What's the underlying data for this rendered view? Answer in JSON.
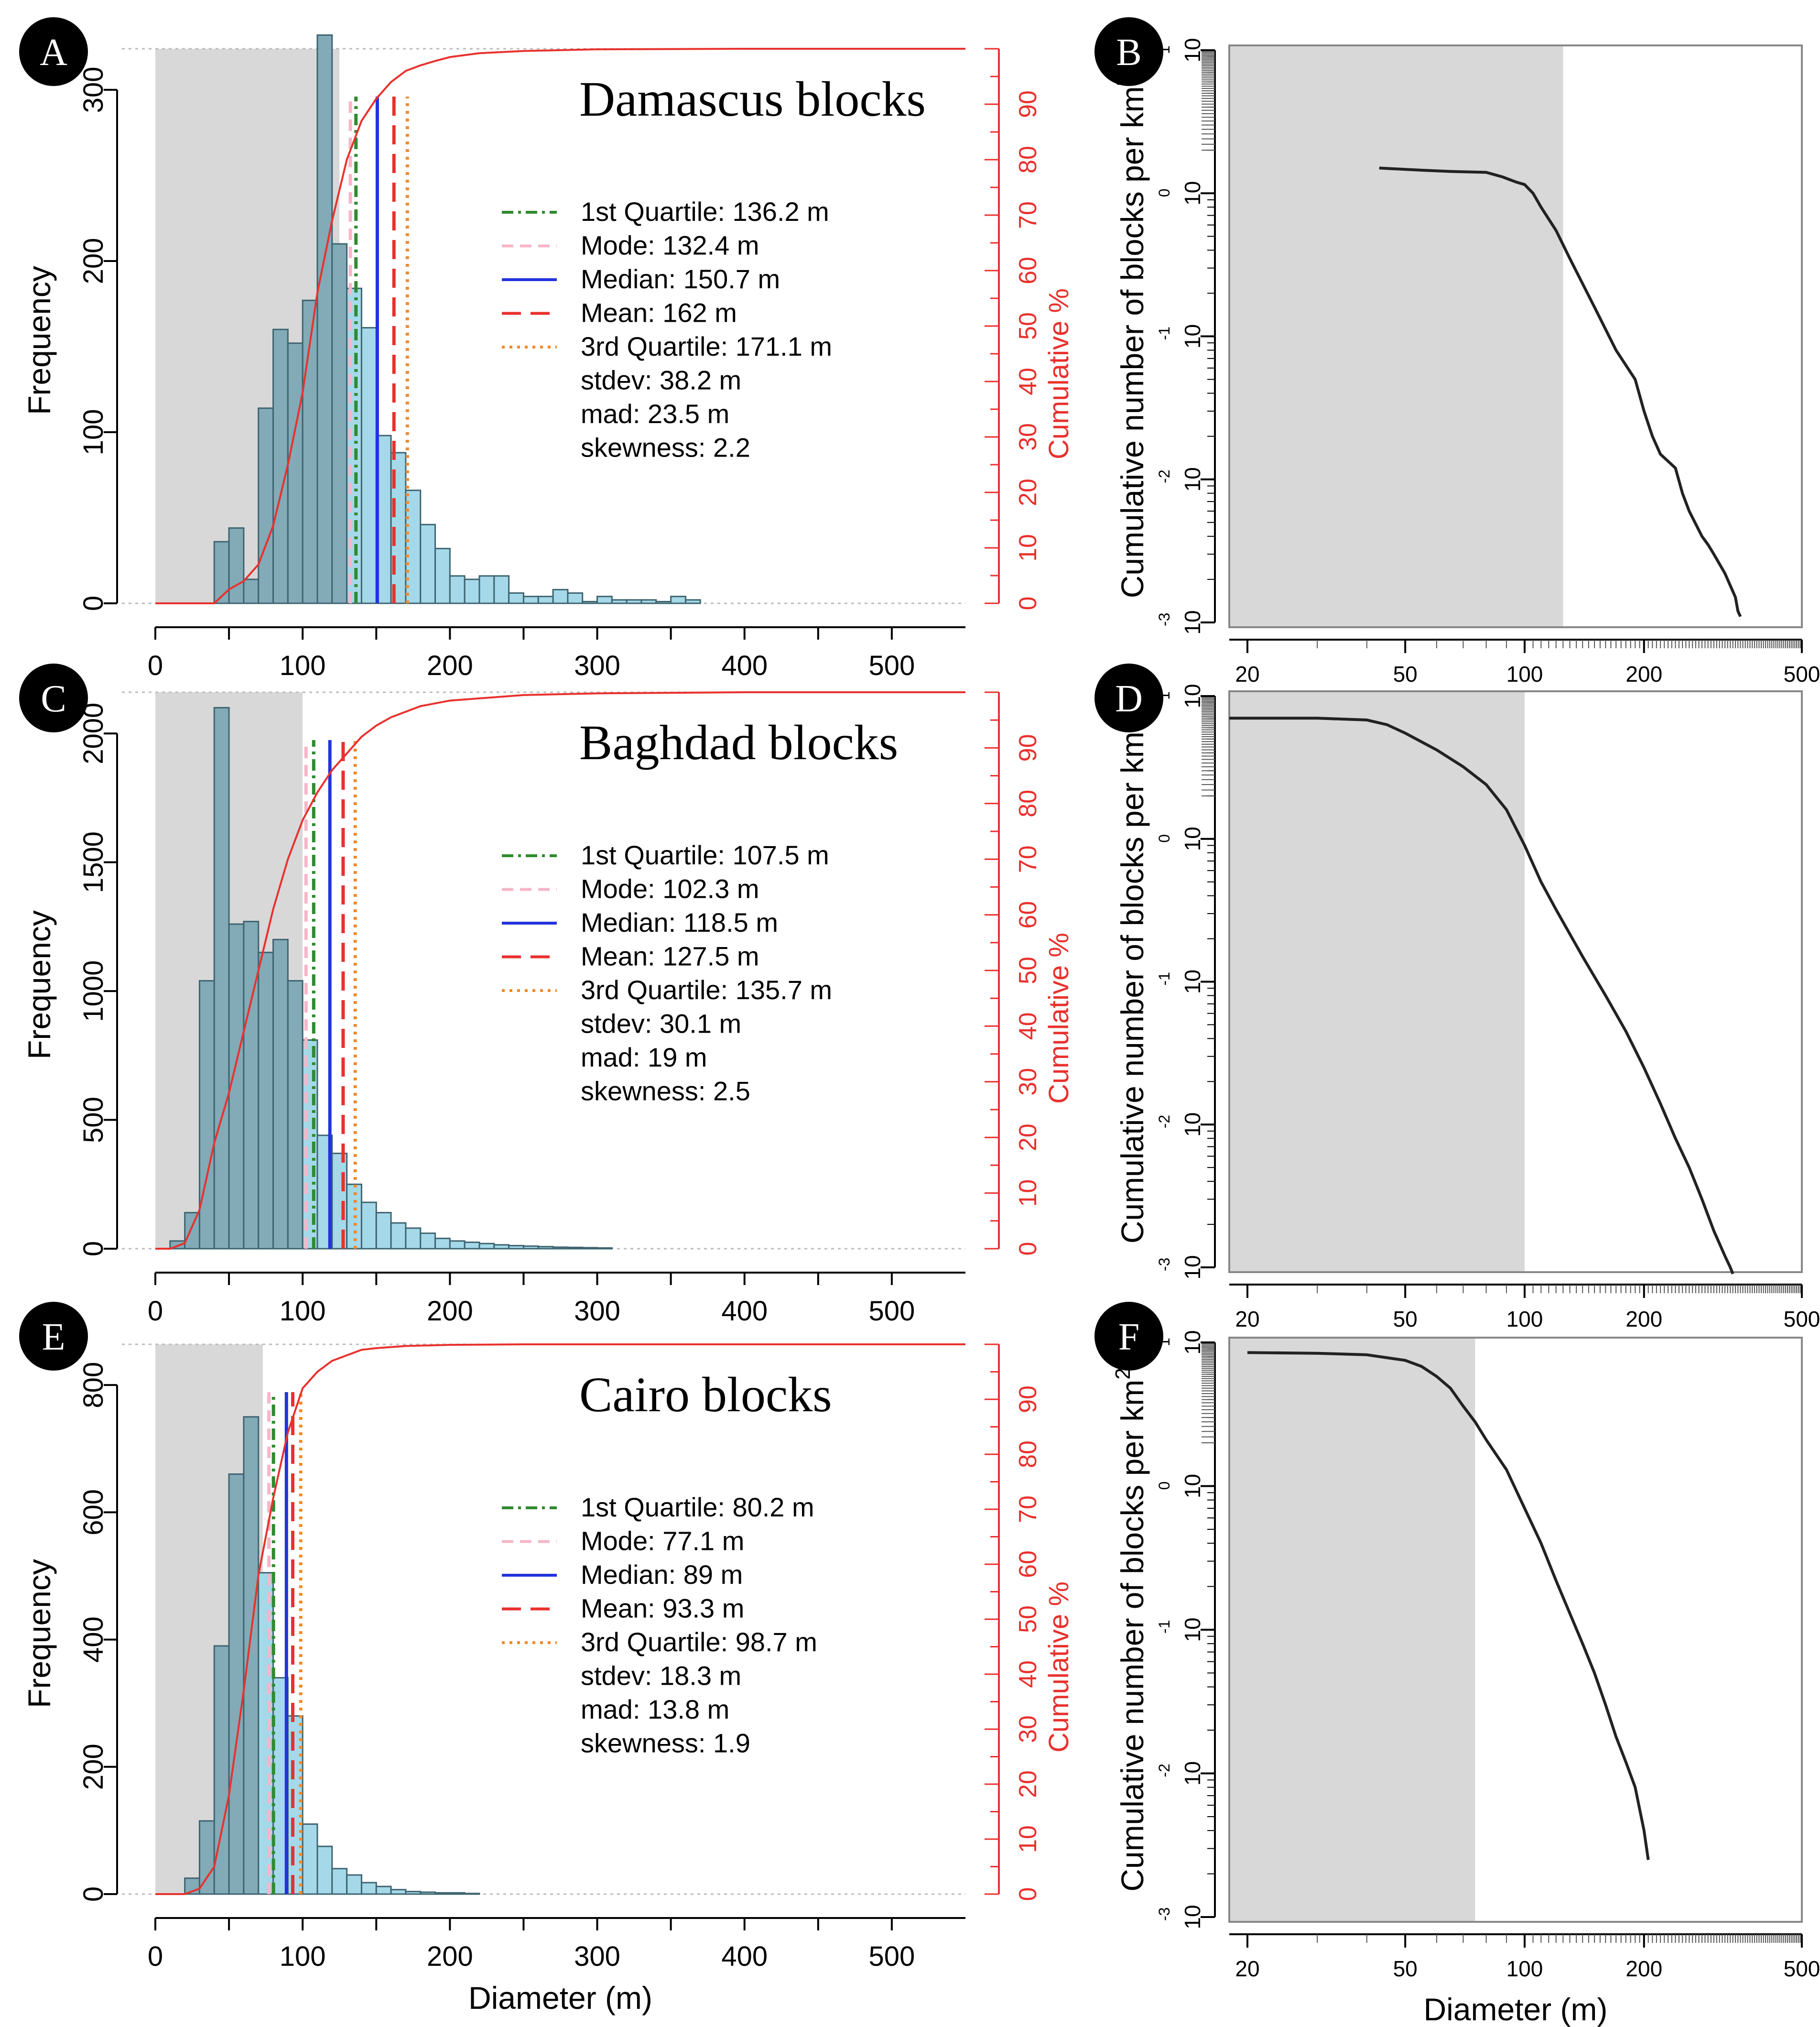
{
  "chart_data": [
    {
      "panel": "A",
      "type": "bar",
      "title": "Damascus blocks",
      "xlabel": "",
      "ylabel": "Frequency",
      "y2label": "Cumulative %",
      "xlim": [
        0,
        550
      ],
      "ylim": [
        0,
        300
      ],
      "yticks": [
        0,
        100,
        200,
        300
      ],
      "xticks": [
        0,
        100,
        200,
        300,
        400,
        500
      ],
      "y2ticks": [
        0,
        10,
        20,
        30,
        40,
        50,
        60,
        70,
        80,
        90
      ],
      "shaded_range": [
        0,
        125
      ],
      "bin_width": 10,
      "bins_start": [
        40,
        50,
        60,
        70,
        80,
        90,
        100,
        110,
        120,
        130,
        140,
        150,
        160,
        170,
        180,
        190,
        200,
        210,
        220,
        230,
        240,
        250,
        260,
        270,
        280,
        290,
        300,
        310,
        320,
        330,
        340,
        350,
        360
      ],
      "counts": [
        36,
        44,
        14,
        114,
        160,
        152,
        177,
        332,
        210,
        184,
        161,
        98,
        88,
        66,
        46,
        32,
        16,
        14,
        16,
        16,
        6,
        4,
        4,
        8,
        6,
        1,
        4,
        2,
        2,
        2,
        1,
        4,
        2
      ],
      "cumulative": {
        "x": [
          0,
          40,
          50,
          60,
          70,
          80,
          90,
          100,
          110,
          120,
          130,
          140,
          150,
          160,
          170,
          180,
          190,
          200,
          220,
          250,
          300,
          400,
          550
        ],
        "y": [
          0,
          0,
          2.5,
          4,
          7,
          14,
          25,
          38,
          56,
          69,
          80,
          87,
          91,
          94,
          96,
          97,
          97.8,
          98.5,
          99.2,
          99.6,
          99.9,
          100,
          100
        ]
      },
      "stat_lines": [
        {
          "value": 136.2,
          "color": "#2e8b2e",
          "dash": "dot-dash"
        },
        {
          "value": 132.4,
          "color": "#f7b6c8",
          "dash": "dashed"
        },
        {
          "value": 150.7,
          "color": "#2233dd",
          "dash": "solid"
        },
        {
          "value": 162,
          "color": "#e8312d",
          "dash": "long-dash"
        },
        {
          "value": 171.1,
          "color": "#f08a2c",
          "dash": "dotted"
        }
      ],
      "legend": [
        {
          "label": "1st Quartile: 136.2 m",
          "color": "#2e8b2e",
          "dash": "dot-dash"
        },
        {
          "label": "Mode: 132.4 m",
          "color": "#f7b6c8",
          "dash": "dashed"
        },
        {
          "label": "Median: 150.7 m",
          "color": "#2233dd",
          "dash": "solid"
        },
        {
          "label": "Mean: 162 m",
          "color": "#e8312d",
          "dash": "long-dash"
        },
        {
          "label": "3rd Quartile: 171.1 m",
          "color": "#f08a2c",
          "dash": "dotted"
        },
        {
          "label": "stdev: 38.2 m"
        },
        {
          "label": "mad: 23.5 m"
        },
        {
          "label": "skewness: 2.2"
        }
      ]
    },
    {
      "panel": "B",
      "type": "line",
      "xlabel": "",
      "ylabel": "Cumulative number of blocks per km",
      "ylabel_sup": "2",
      "xscale": "log",
      "yscale": "log",
      "xlim": [
        18,
        500
      ],
      "ylim_exp": [
        -3,
        1
      ],
      "xticks": [
        20,
        50,
        100,
        200,
        500
      ],
      "yticks_exp": [
        -3,
        -2,
        -1,
        0,
        1
      ],
      "shaded_range": [
        18,
        125
      ],
      "series": {
        "x": [
          43,
          55,
          65,
          80,
          88,
          95,
          100,
          105,
          110,
          120,
          130,
          150,
          170,
          190,
          200,
          210,
          220,
          240,
          250,
          260,
          280,
          290,
          300,
          320,
          340,
          345,
          350
        ],
        "y": [
          1.5,
          1.45,
          1.42,
          1.4,
          1.3,
          1.2,
          1.15,
          1.0,
          0.8,
          0.55,
          0.35,
          0.16,
          0.08,
          0.05,
          0.03,
          0.02,
          0.015,
          0.012,
          0.008,
          0.006,
          0.004,
          0.0035,
          0.003,
          0.0022,
          0.0015,
          0.0012,
          0.0011
        ]
      }
    },
    {
      "panel": "C",
      "type": "bar",
      "title": "Baghdad blocks",
      "xlabel": "",
      "ylabel": "Frequency",
      "y2label": "Cumulative %",
      "xlim": [
        0,
        550
      ],
      "ylim": [
        0,
        2000
      ],
      "yticks": [
        0,
        500,
        1000,
        1500,
        2000
      ],
      "xticks": [
        0,
        100,
        200,
        300,
        400,
        500
      ],
      "y2ticks": [
        0,
        10,
        20,
        30,
        40,
        50,
        60,
        70,
        80,
        90
      ],
      "shaded_range": [
        0,
        100
      ],
      "bin_width": 10,
      "bins_start": [
        10,
        20,
        30,
        40,
        50,
        60,
        70,
        80,
        90,
        100,
        110,
        120,
        130,
        140,
        150,
        160,
        170,
        180,
        190,
        200,
        210,
        220,
        230,
        240,
        250,
        260,
        270,
        280,
        290,
        300
      ],
      "counts": [
        30,
        140,
        1040,
        2100,
        1260,
        1270,
        1150,
        1200,
        1040,
        810,
        440,
        370,
        250,
        180,
        140,
        100,
        80,
        60,
        40,
        30,
        25,
        20,
        15,
        12,
        10,
        8,
        6,
        5,
        4,
        3
      ],
      "cumulative": {
        "x": [
          0,
          10,
          20,
          30,
          40,
          50,
          60,
          70,
          80,
          90,
          100,
          110,
          120,
          130,
          140,
          150,
          160,
          180,
          200,
          250,
          300,
          400,
          550
        ],
        "y": [
          0,
          0,
          1,
          7,
          19,
          28,
          39,
          50,
          61,
          70,
          77,
          82,
          86,
          89,
          92,
          94,
          95.5,
          97.5,
          98.5,
          99.5,
          99.8,
          100,
          100
        ]
      },
      "stat_lines": [
        {
          "value": 107.5,
          "color": "#2e8b2e",
          "dash": "dot-dash"
        },
        {
          "value": 102.3,
          "color": "#f7b6c8",
          "dash": "dashed"
        },
        {
          "value": 118.5,
          "color": "#2233dd",
          "dash": "solid"
        },
        {
          "value": 127.5,
          "color": "#e8312d",
          "dash": "long-dash"
        },
        {
          "value": 135.7,
          "color": "#f08a2c",
          "dash": "dotted"
        }
      ],
      "legend": [
        {
          "label": "1st Quartile: 107.5 m",
          "color": "#2e8b2e",
          "dash": "dot-dash"
        },
        {
          "label": "Mode: 102.3 m",
          "color": "#f7b6c8",
          "dash": "dashed"
        },
        {
          "label": "Median: 118.5 m",
          "color": "#2233dd",
          "dash": "solid"
        },
        {
          "label": "Mean: 127.5 m",
          "color": "#e8312d",
          "dash": "long-dash"
        },
        {
          "label": "3rd Quartile: 135.7 m",
          "color": "#f08a2c",
          "dash": "dotted"
        },
        {
          "label": "stdev: 30.1 m"
        },
        {
          "label": "mad: 19 m"
        },
        {
          "label": "skewness: 2.5"
        }
      ]
    },
    {
      "panel": "D",
      "type": "line",
      "xlabel": "",
      "ylabel": "Cumulative number of blocks per km",
      "ylabel_sup": "2",
      "xscale": "log",
      "yscale": "log",
      "xlim": [
        18,
        500
      ],
      "ylim_exp": [
        -3,
        1
      ],
      "xticks": [
        20,
        50,
        100,
        200,
        500
      ],
      "yticks_exp": [
        -3,
        -2,
        -1,
        0,
        1
      ],
      "shaded_range": [
        18,
        100
      ],
      "series": {
        "x": [
          18,
          30,
          40,
          45,
          50,
          60,
          70,
          80,
          90,
          100,
          110,
          120,
          140,
          160,
          180,
          200,
          220,
          240,
          260,
          280,
          300,
          320,
          330,
          335
        ],
        "y": [
          7,
          7,
          6.8,
          6.3,
          5.5,
          4.2,
          3.2,
          2.4,
          1.6,
          0.9,
          0.5,
          0.32,
          0.15,
          0.08,
          0.045,
          0.025,
          0.014,
          0.008,
          0.005,
          0.003,
          0.0018,
          0.0012,
          0.001,
          0.0009
        ]
      }
    },
    {
      "panel": "E",
      "type": "bar",
      "title": "Cairo blocks",
      "xlabel": "Diameter (m)",
      "ylabel": "Frequency",
      "y2label": "Cumulative %",
      "xlim": [
        0,
        550
      ],
      "ylim": [
        0,
        800
      ],
      "yticks": [
        0,
        200,
        400,
        600,
        800
      ],
      "xticks": [
        0,
        100,
        200,
        300,
        400,
        500
      ],
      "y2ticks": [
        0,
        10,
        20,
        30,
        40,
        50,
        60,
        70,
        80,
        90
      ],
      "shaded_range": [
        0,
        73
      ],
      "bin_width": 10,
      "bins_start": [
        20,
        30,
        40,
        50,
        60,
        70,
        80,
        90,
        100,
        110,
        120,
        130,
        140,
        150,
        160,
        170,
        180,
        190,
        200,
        210
      ],
      "counts": [
        25,
        115,
        390,
        660,
        750,
        505,
        340,
        280,
        110,
        75,
        40,
        30,
        18,
        12,
        7,
        4,
        3,
        2,
        2,
        1
      ],
      "cumulative": {
        "x": [
          0,
          20,
          30,
          40,
          50,
          60,
          70,
          80,
          90,
          100,
          110,
          120,
          130,
          140,
          150,
          170,
          200,
          250,
          300,
          550
        ],
        "y": [
          0,
          0,
          1,
          5,
          18,
          37,
          58,
          72,
          84,
          92,
          95,
          97,
          98,
          99,
          99.3,
          99.7,
          99.9,
          100,
          100,
          100
        ]
      },
      "stat_lines": [
        {
          "value": 80.2,
          "color": "#2e8b2e",
          "dash": "dot-dash"
        },
        {
          "value": 77.1,
          "color": "#f7b6c8",
          "dash": "dashed"
        },
        {
          "value": 89,
          "color": "#2233dd",
          "dash": "solid"
        },
        {
          "value": 93.3,
          "color": "#e8312d",
          "dash": "long-dash"
        },
        {
          "value": 98.7,
          "color": "#f08a2c",
          "dash": "dotted"
        }
      ],
      "legend": [
        {
          "label": "1st Quartile: 80.2 m",
          "color": "#2e8b2e",
          "dash": "dot-dash"
        },
        {
          "label": "Mode: 77.1 m",
          "color": "#f7b6c8",
          "dash": "dashed"
        },
        {
          "label": "Median: 89 m",
          "color": "#2233dd",
          "dash": "solid"
        },
        {
          "label": "Mean: 93.3 m",
          "color": "#e8312d",
          "dash": "long-dash"
        },
        {
          "label": "3rd Quartile: 98.7 m",
          "color": "#f08a2c",
          "dash": "dotted"
        },
        {
          "label": "stdev: 18.3 m"
        },
        {
          "label": "mad: 13.8 m"
        },
        {
          "label": "skewness: 1.9"
        }
      ]
    },
    {
      "panel": "F",
      "type": "line",
      "xlabel": "Diameter (m)",
      "ylabel": "Cumulative number of blocks per km",
      "ylabel_sup": "2",
      "xscale": "log",
      "yscale": "log",
      "xlim": [
        18,
        500
      ],
      "ylim_exp": [
        -3,
        1
      ],
      "xticks": [
        20,
        50,
        100,
        200,
        500
      ],
      "yticks_exp": [
        -3,
        -2,
        -1,
        0,
        1
      ],
      "shaded_range": [
        18,
        75
      ],
      "series": {
        "x": [
          20,
          30,
          40,
          50,
          55,
          60,
          65,
          70,
          75,
          80,
          90,
          100,
          110,
          120,
          130,
          140,
          150,
          160,
          170,
          180,
          190,
          200,
          205
        ],
        "y": [
          8.5,
          8.4,
          8.2,
          7.5,
          6.8,
          5.8,
          4.8,
          3.6,
          2.8,
          2.1,
          1.3,
          0.7,
          0.4,
          0.22,
          0.13,
          0.08,
          0.05,
          0.03,
          0.018,
          0.012,
          0.008,
          0.004,
          0.0025
        ]
      }
    }
  ],
  "colors": {
    "bar_shaded": "#82aab7",
    "bar_plain": "#a5d9ea",
    "bar_stroke": "#3f6470",
    "shade": "#d8d8d8",
    "cum": "#e8312d",
    "curve": "#222222"
  }
}
